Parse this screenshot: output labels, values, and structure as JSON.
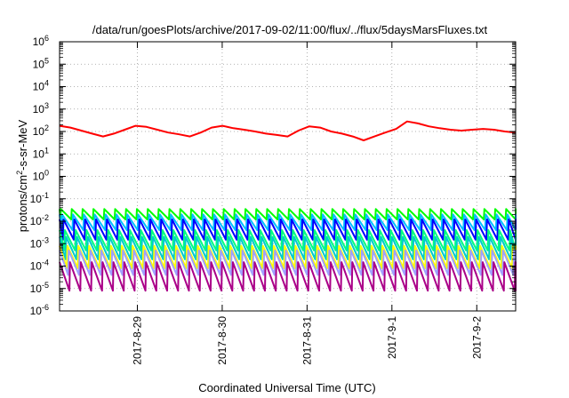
{
  "chart_data": {
    "type": "line",
    "title": "/data/run/goesPlots/archive/2017-09-02/11:00/flux/../flux/5daysMarsFluxes.txt",
    "xlabel": "Coordinated Universal Time (UTC)",
    "ylabel_parts": [
      "protons/cm",
      "2",
      "-s-sr-MeV"
    ],
    "yscale": "log",
    "ylim": [
      1e-06,
      1000000.0
    ],
    "xlim": [
      "2017-08-28 02:00",
      "2017-09-02 11:00"
    ],
    "grid": true,
    "x_ticks": [
      "2017-8-29",
      "2017-8-30",
      "2017-8-31",
      "2017-9-1",
      "2017-9-2"
    ],
    "y_ticks": [
      {
        "base": "10",
        "exp": "-6"
      },
      {
        "base": "10",
        "exp": "-5"
      },
      {
        "base": "10",
        "exp": "-4"
      },
      {
        "base": "10",
        "exp": "-3"
      },
      {
        "base": "10",
        "exp": "-2"
      },
      {
        "base": "10",
        "exp": "-1"
      },
      {
        "base": "10",
        "exp": "0"
      },
      {
        "base": "10",
        "exp": "1"
      },
      {
        "base": "10",
        "exp": "2"
      },
      {
        "base": "10",
        "exp": "3"
      },
      {
        "base": "10",
        "exp": "4"
      },
      {
        "base": "10",
        "exp": "5"
      },
      {
        "base": "10",
        "exp": "6"
      }
    ],
    "series_style": "sawtooth, about 42 cycles over the window",
    "series": [
      {
        "color": "#ff0000",
        "values_approx": [
          180,
          150,
          110,
          80,
          60,
          80,
          120,
          180,
          160,
          120,
          90,
          75,
          60,
          90,
          150,
          180,
          140,
          120,
          100,
          80,
          70,
          60,
          110,
          170,
          150,
          100,
          80,
          60,
          40,
          60,
          90,
          130,
          280,
          230,
          170,
          140,
          120,
          110,
          120,
          130,
          120,
          100,
          90
        ]
      },
      {
        "color": "#00ff00",
        "values": {
          "peak": 0.035,
          "trough": 0.012
        }
      },
      {
        "color": "#00bfff",
        "values": {
          "peak": 0.02,
          "trough": 0.004
        }
      },
      {
        "color": "#0000ff",
        "values": {
          "peak": 0.012,
          "trough": 0.0015
        }
      },
      {
        "color": "#00ff80",
        "values": {
          "peak": 0.004,
          "trough": 0.0005
        }
      },
      {
        "color": "#00cccc",
        "values": {
          "peak": 0.002,
          "trough": 0.0002
        }
      },
      {
        "color": "#ffff00",
        "values": {
          "peak": 0.0008,
          "trough": 8e-05
        }
      },
      {
        "color": "#a0a0ff",
        "values": {
          "peak": 0.0005,
          "trough": 4e-05
        }
      },
      {
        "color": "#aa0088",
        "values": {
          "peak": 0.00015,
          "trough": 8e-06
        }
      }
    ]
  }
}
